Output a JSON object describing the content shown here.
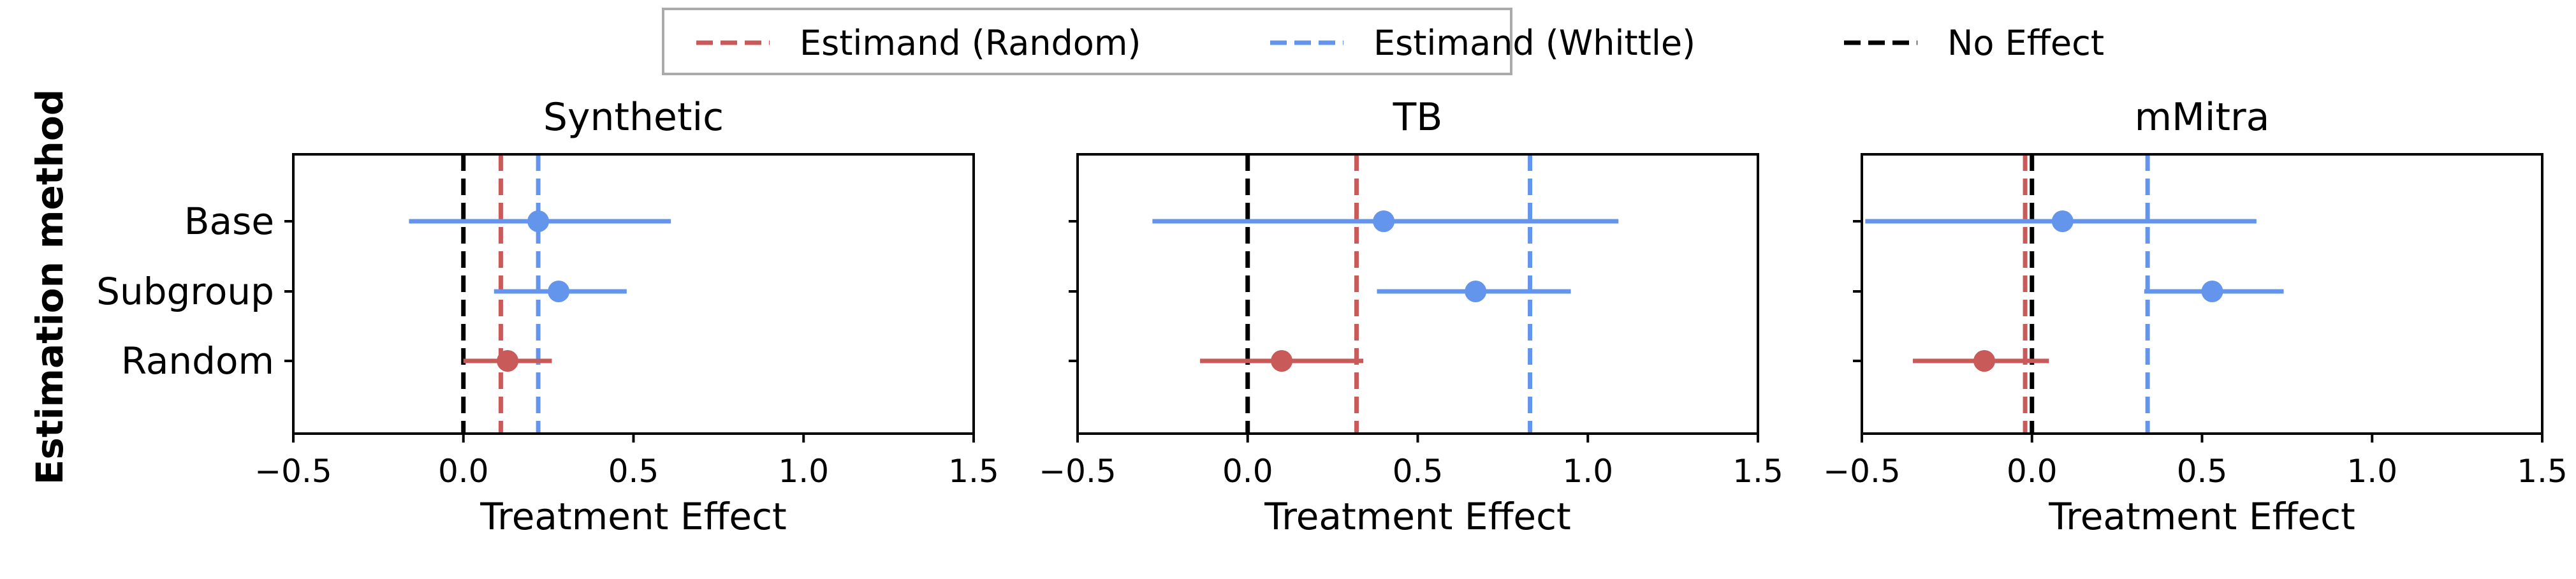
{
  "figure": {
    "ylabel": "Estimation method",
    "xlabel": "Treatment Effect",
    "legend": [
      {
        "label": "Estimand (Random)",
        "color": "#c85a5a",
        "style": "dashed"
      },
      {
        "label": "Estimand (Whittle)",
        "color": "#6495ed",
        "style": "dashed"
      },
      {
        "label": "No Effect",
        "color": "#000000",
        "style": "dashed"
      }
    ]
  },
  "chart_data": [
    {
      "type": "errorbar",
      "title": "Synthetic",
      "xlabel": "Treatment Effect",
      "ylabel": "Estimation method",
      "xlim": [
        -0.5,
        1.5
      ],
      "xticks": [
        -0.5,
        0.0,
        0.5,
        1.0,
        1.5
      ],
      "xtick_labels": [
        "−0.5",
        "0.0",
        "0.5",
        "1.0",
        "1.5"
      ],
      "categories": [
        "Base",
        "Subgroup",
        "Random"
      ],
      "points": [
        {
          "method": "Base",
          "estimate": 0.22,
          "low": -0.16,
          "high": 0.61,
          "color": "#6495ed"
        },
        {
          "method": "Subgroup",
          "estimate": 0.28,
          "low": 0.09,
          "high": 0.48,
          "color": "#6495ed"
        },
        {
          "method": "Random",
          "estimate": 0.13,
          "low": 0.0,
          "high": 0.26,
          "color": "#c85a5a"
        }
      ],
      "reference_lines": [
        {
          "name": "Estimand (Random)",
          "x": 0.11,
          "color": "#c85a5a"
        },
        {
          "name": "Estimand (Whittle)",
          "x": 0.22,
          "color": "#6495ed"
        },
        {
          "name": "No Effect",
          "x": 0.0,
          "color": "#000000"
        }
      ],
      "show_ytick_labels": true,
      "grid": false
    },
    {
      "type": "errorbar",
      "title": "TB",
      "xlabel": "Treatment Effect",
      "ylabel": "",
      "xlim": [
        -0.5,
        1.5
      ],
      "xticks": [
        -0.5,
        0.0,
        0.5,
        1.0,
        1.5
      ],
      "xtick_labels": [
        "−0.5",
        "0.0",
        "0.5",
        "1.0",
        "1.5"
      ],
      "categories": [
        "Base",
        "Subgroup",
        "Random"
      ],
      "points": [
        {
          "method": "Base",
          "estimate": 0.4,
          "low": -0.28,
          "high": 1.09,
          "color": "#6495ed"
        },
        {
          "method": "Subgroup",
          "estimate": 0.67,
          "low": 0.38,
          "high": 0.95,
          "color": "#6495ed"
        },
        {
          "method": "Random",
          "estimate": 0.1,
          "low": -0.14,
          "high": 0.34,
          "color": "#c85a5a"
        }
      ],
      "reference_lines": [
        {
          "name": "Estimand (Random)",
          "x": 0.32,
          "color": "#c85a5a"
        },
        {
          "name": "Estimand (Whittle)",
          "x": 0.83,
          "color": "#6495ed"
        },
        {
          "name": "No Effect",
          "x": 0.0,
          "color": "#000000"
        }
      ],
      "show_ytick_labels": false,
      "grid": false
    },
    {
      "type": "errorbar",
      "title": "mMitra",
      "xlabel": "Treatment Effect",
      "ylabel": "",
      "xlim": [
        -0.5,
        1.5
      ],
      "xticks": [
        -0.5,
        0.0,
        0.5,
        1.0,
        1.5
      ],
      "xtick_labels": [
        "−0.5",
        "0.0",
        "0.5",
        "1.0",
        "1.5"
      ],
      "categories": [
        "Base",
        "Subgroup",
        "Random"
      ],
      "points": [
        {
          "method": "Base",
          "estimate": 0.09,
          "low": -0.49,
          "high": 0.66,
          "color": "#6495ed"
        },
        {
          "method": "Subgroup",
          "estimate": 0.53,
          "low": 0.33,
          "high": 0.74,
          "color": "#6495ed"
        },
        {
          "method": "Random",
          "estimate": -0.14,
          "low": -0.35,
          "high": 0.05,
          "color": "#c85a5a"
        }
      ],
      "reference_lines": [
        {
          "name": "Estimand (Random)",
          "x": -0.02,
          "color": "#c85a5a"
        },
        {
          "name": "Estimand (Whittle)",
          "x": 0.34,
          "color": "#6495ed"
        },
        {
          "name": "No Effect",
          "x": 0.0,
          "color": "#000000"
        }
      ],
      "show_ytick_labels": false,
      "grid": false
    }
  ]
}
